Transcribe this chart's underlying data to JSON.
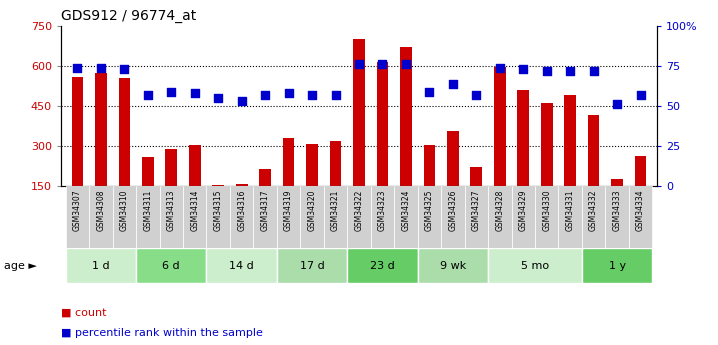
{
  "title": "GDS912 / 96774_at",
  "samples": [
    "GSM34307",
    "GSM34308",
    "GSM34310",
    "GSM34311",
    "GSM34313",
    "GSM34314",
    "GSM34315",
    "GSM34316",
    "GSM34317",
    "GSM34319",
    "GSM34320",
    "GSM34321",
    "GSM34322",
    "GSM34323",
    "GSM34324",
    "GSM34325",
    "GSM34326",
    "GSM34327",
    "GSM34328",
    "GSM34329",
    "GSM34330",
    "GSM34331",
    "GSM34332",
    "GSM34333",
    "GSM34334"
  ],
  "counts": [
    560,
    572,
    555,
    258,
    288,
    305,
    155,
    158,
    215,
    330,
    308,
    320,
    700,
    615,
    670,
    303,
    355,
    223,
    597,
    510,
    460,
    493,
    415,
    178,
    263
  ],
  "percentiles": [
    74,
    74,
    73,
    57,
    59,
    58,
    55,
    53,
    57,
    58,
    57,
    57,
    76,
    76,
    76,
    59,
    64,
    57,
    74,
    73,
    72,
    72,
    72,
    51,
    57
  ],
  "ylim_left": [
    150,
    750
  ],
  "ylim_right": [
    0,
    100
  ],
  "yticks_left": [
    150,
    300,
    450,
    600,
    750
  ],
  "yticks_right": [
    0,
    25,
    50,
    75,
    100
  ],
  "ytick_labels_left": [
    "150",
    "300",
    "450",
    "600",
    "750"
  ],
  "ytick_labels_right": [
    "0",
    "25",
    "50",
    "75",
    "100%"
  ],
  "age_groups": [
    {
      "label": "1 d",
      "start": 0,
      "end": 3,
      "color": "#cceecc"
    },
    {
      "label": "6 d",
      "start": 3,
      "end": 6,
      "color": "#88dd88"
    },
    {
      "label": "14 d",
      "start": 6,
      "end": 9,
      "color": "#cceecc"
    },
    {
      "label": "17 d",
      "start": 9,
      "end": 12,
      "color": "#aaddaa"
    },
    {
      "label": "23 d",
      "start": 12,
      "end": 15,
      "color": "#66cc66"
    },
    {
      "label": "9 wk",
      "start": 15,
      "end": 18,
      "color": "#aaddaa"
    },
    {
      "label": "5 mo",
      "start": 18,
      "end": 22,
      "color": "#cceecc"
    },
    {
      "label": "1 y",
      "start": 22,
      "end": 25,
      "color": "#66cc66"
    }
  ],
  "bar_color": "#cc0000",
  "dot_color": "#0000cc",
  "bar_width": 0.5,
  "dot_size": 32,
  "xticklabel_bg": "#d8d8d8",
  "grid_yticks": [
    300,
    450,
    600
  ]
}
